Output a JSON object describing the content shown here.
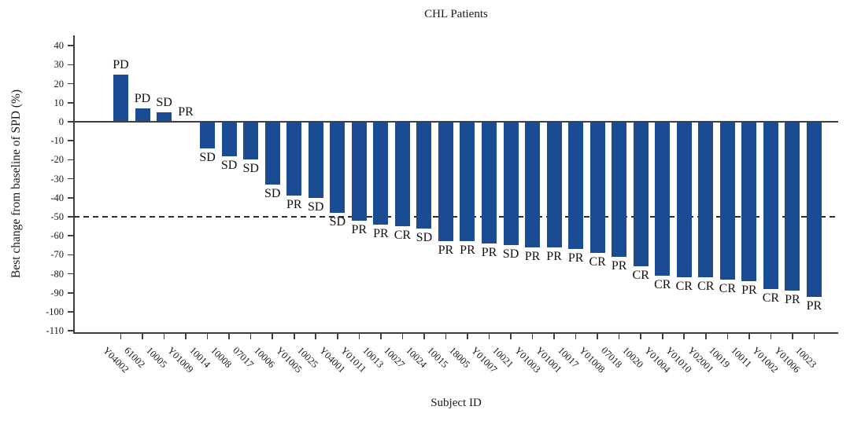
{
  "chart_data": {
    "type": "bar",
    "subtype": "waterfall",
    "title": "CHL Patients",
    "xlabel": "Subject ID",
    "ylabel": "Best change from baseline of SPD (%)",
    "ylim": [
      -110,
      40
    ],
    "yticks": [
      40,
      30,
      20,
      10,
      0,
      -10,
      -20,
      -30,
      -40,
      -50,
      -60,
      -70,
      -80,
      -90,
      -100,
      -110
    ],
    "reference_line_y": -50,
    "reference_line_style": "dashed",
    "grid": false,
    "legend_position": "none",
    "bar_color": "#1b4b92",
    "axis_color": "#3f3f3f",
    "categories": [
      "Y04002",
      "61002",
      "10005",
      "Y01009",
      "10014",
      "10008",
      "07017",
      "10006",
      "Y01005",
      "10025",
      "Y04001",
      "Y01011",
      "10013",
      "10027",
      "10024",
      "10015",
      "18005",
      "Y01007",
      "10021",
      "Y01003",
      "Y01001",
      "10017",
      "Y01008",
      "07018",
      "10020",
      "Y01004",
      "Y01010",
      "Y02001",
      "10019",
      "10011",
      "Y01002",
      "Y01006",
      "10023"
    ],
    "values": [
      25,
      7,
      5,
      0,
      -14,
      -18,
      -20,
      -33,
      -39,
      -40,
      -48,
      -52,
      -54,
      -55,
      -56,
      -63,
      -63,
      -64,
      -65,
      -66,
      -66,
      -67,
      -69,
      -71,
      -76,
      -81,
      -82,
      -82,
      -83,
      -84,
      -88,
      -89,
      -92
    ],
    "bar_labels": [
      "PD",
      "PD",
      "SD",
      "PR",
      "SD",
      "SD",
      "SD",
      "SD",
      "PR",
      "SD",
      "SD",
      "PR",
      "PR",
      "CR",
      "SD",
      "PR",
      "PR",
      "PR",
      "SD",
      "PR",
      "PR",
      "PR",
      "CR",
      "PR",
      "CR",
      "CR",
      "CR",
      "CR",
      "CR",
      "PR",
      "CR",
      "PR",
      "PR"
    ]
  }
}
